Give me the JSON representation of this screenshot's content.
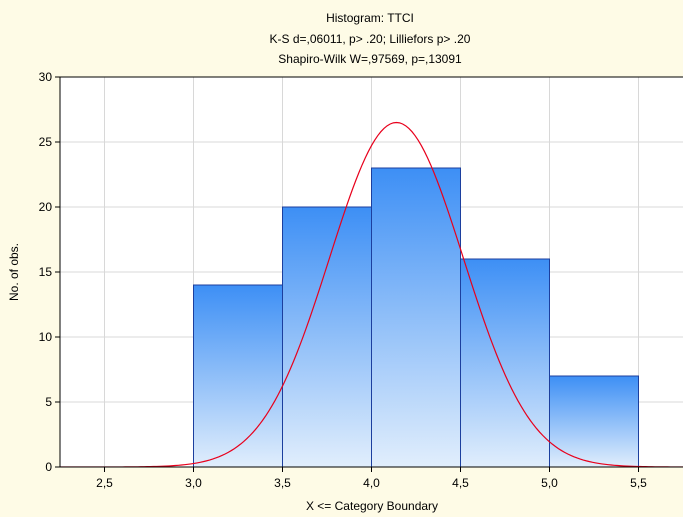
{
  "chart_data": {
    "type": "bar",
    "title_lines": [
      "Histogram: TTCI",
      "K-S d=,06011, p> .20; Lilliefors p> .20",
      "Shapiro-Wilk W=,97569, p=,13091"
    ],
    "xlabel": "X <= Category Boundary",
    "ylabel": "No. of obs.",
    "xlim": [
      2.25,
      5.75
    ],
    "ylim": [
      0,
      30
    ],
    "x_ticks": [
      2.5,
      3.0,
      3.5,
      4.0,
      4.5,
      5.0,
      5.5
    ],
    "x_tick_labels": [
      "2,5",
      "3,0",
      "3,5",
      "4,0",
      "4,5",
      "5,0",
      "5,5"
    ],
    "y_ticks": [
      0,
      5,
      10,
      15,
      20,
      25,
      30
    ],
    "y_tick_labels": [
      "0",
      "5",
      "10",
      "15",
      "20",
      "25",
      "30"
    ],
    "bins": [
      {
        "from": 3.0,
        "to": 3.5,
        "count": 14
      },
      {
        "from": 3.5,
        "to": 4.0,
        "count": 20
      },
      {
        "from": 4.0,
        "to": 4.5,
        "count": 23
      },
      {
        "from": 4.5,
        "to": 5.0,
        "count": 16
      },
      {
        "from": 5.0,
        "to": 5.5,
        "count": 7
      }
    ],
    "normal_curve": {
      "mean": 4.14,
      "sd": 0.376,
      "peak": 26.5,
      "color": "#e8001c"
    },
    "grid": true,
    "colors": {
      "background": "#fefbe6",
      "plot_background": "#ffffff",
      "bar_top": "#3d8ff5",
      "bar_bottom": "#e1eefc",
      "bar_border": "#1c3f9e",
      "grid": "#d8d8d8"
    }
  }
}
